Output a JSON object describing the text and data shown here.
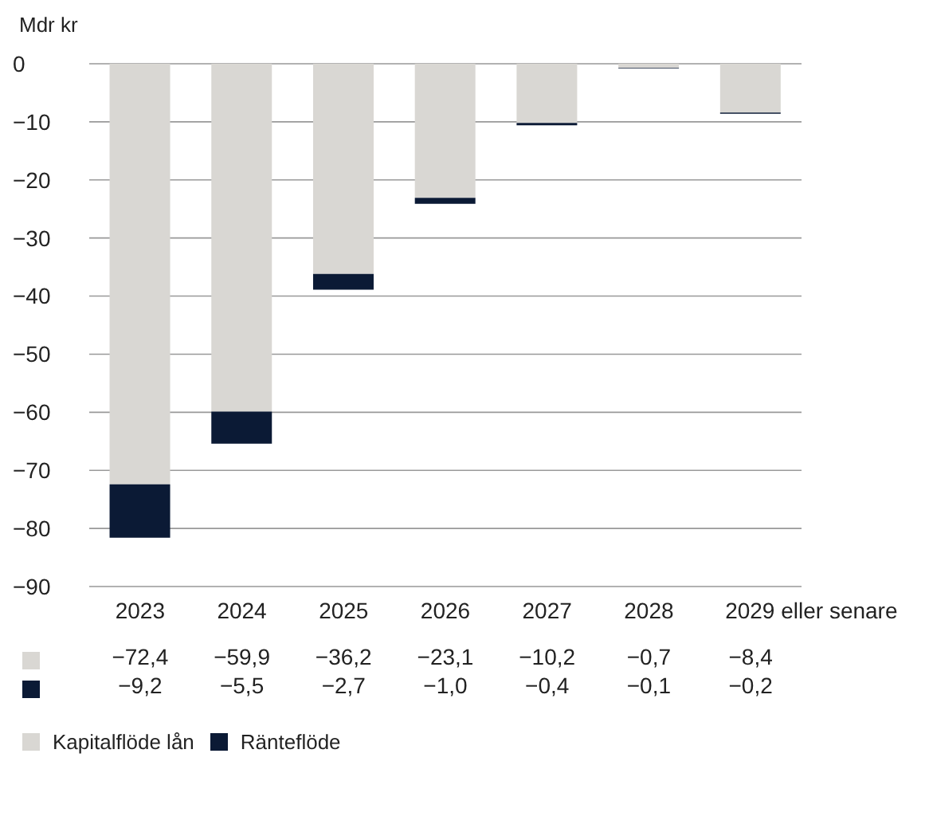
{
  "chart_data": {
    "type": "bar",
    "stacked": true,
    "ylabel": "Mdr kr",
    "categories": [
      "2023",
      "2024",
      "2025",
      "2026",
      "2027",
      "2028",
      "2029 eller senare"
    ],
    "series": [
      {
        "name": "Kapitalflöde lån",
        "color": "#d9d7d3",
        "values": [
          -72.4,
          -59.9,
          -36.2,
          -23.1,
          -10.2,
          -0.7,
          -8.4
        ],
        "value_labels": [
          "−72,4",
          "−59,9",
          "−36,2",
          "−23,1",
          "−10,2",
          "−0,7",
          "−8,4"
        ]
      },
      {
        "name": "Ränteflöde",
        "color": "#0b1a35",
        "values": [
          -9.2,
          -5.5,
          -2.7,
          -1.0,
          -0.4,
          -0.1,
          -0.2
        ],
        "value_labels": [
          "−9,2",
          "−5,5",
          "−2,7",
          "−1,0",
          "−0,4",
          "−0,1",
          "−0,2"
        ]
      }
    ],
    "ylim": [
      -90,
      0
    ],
    "yticks": [
      {
        "value": -90,
        "label": "−90"
      },
      {
        "value": -80,
        "label": "−80"
      },
      {
        "value": -70,
        "label": "−70"
      },
      {
        "value": -60,
        "label": "−60"
      },
      {
        "value": -50,
        "label": "−50"
      },
      {
        "value": -40,
        "label": "−40"
      },
      {
        "value": -30,
        "label": "−30"
      },
      {
        "value": -20,
        "label": "−20"
      },
      {
        "value": -10,
        "label": "−10"
      },
      0
    ],
    "grid": "y",
    "legend": "bottom"
  }
}
